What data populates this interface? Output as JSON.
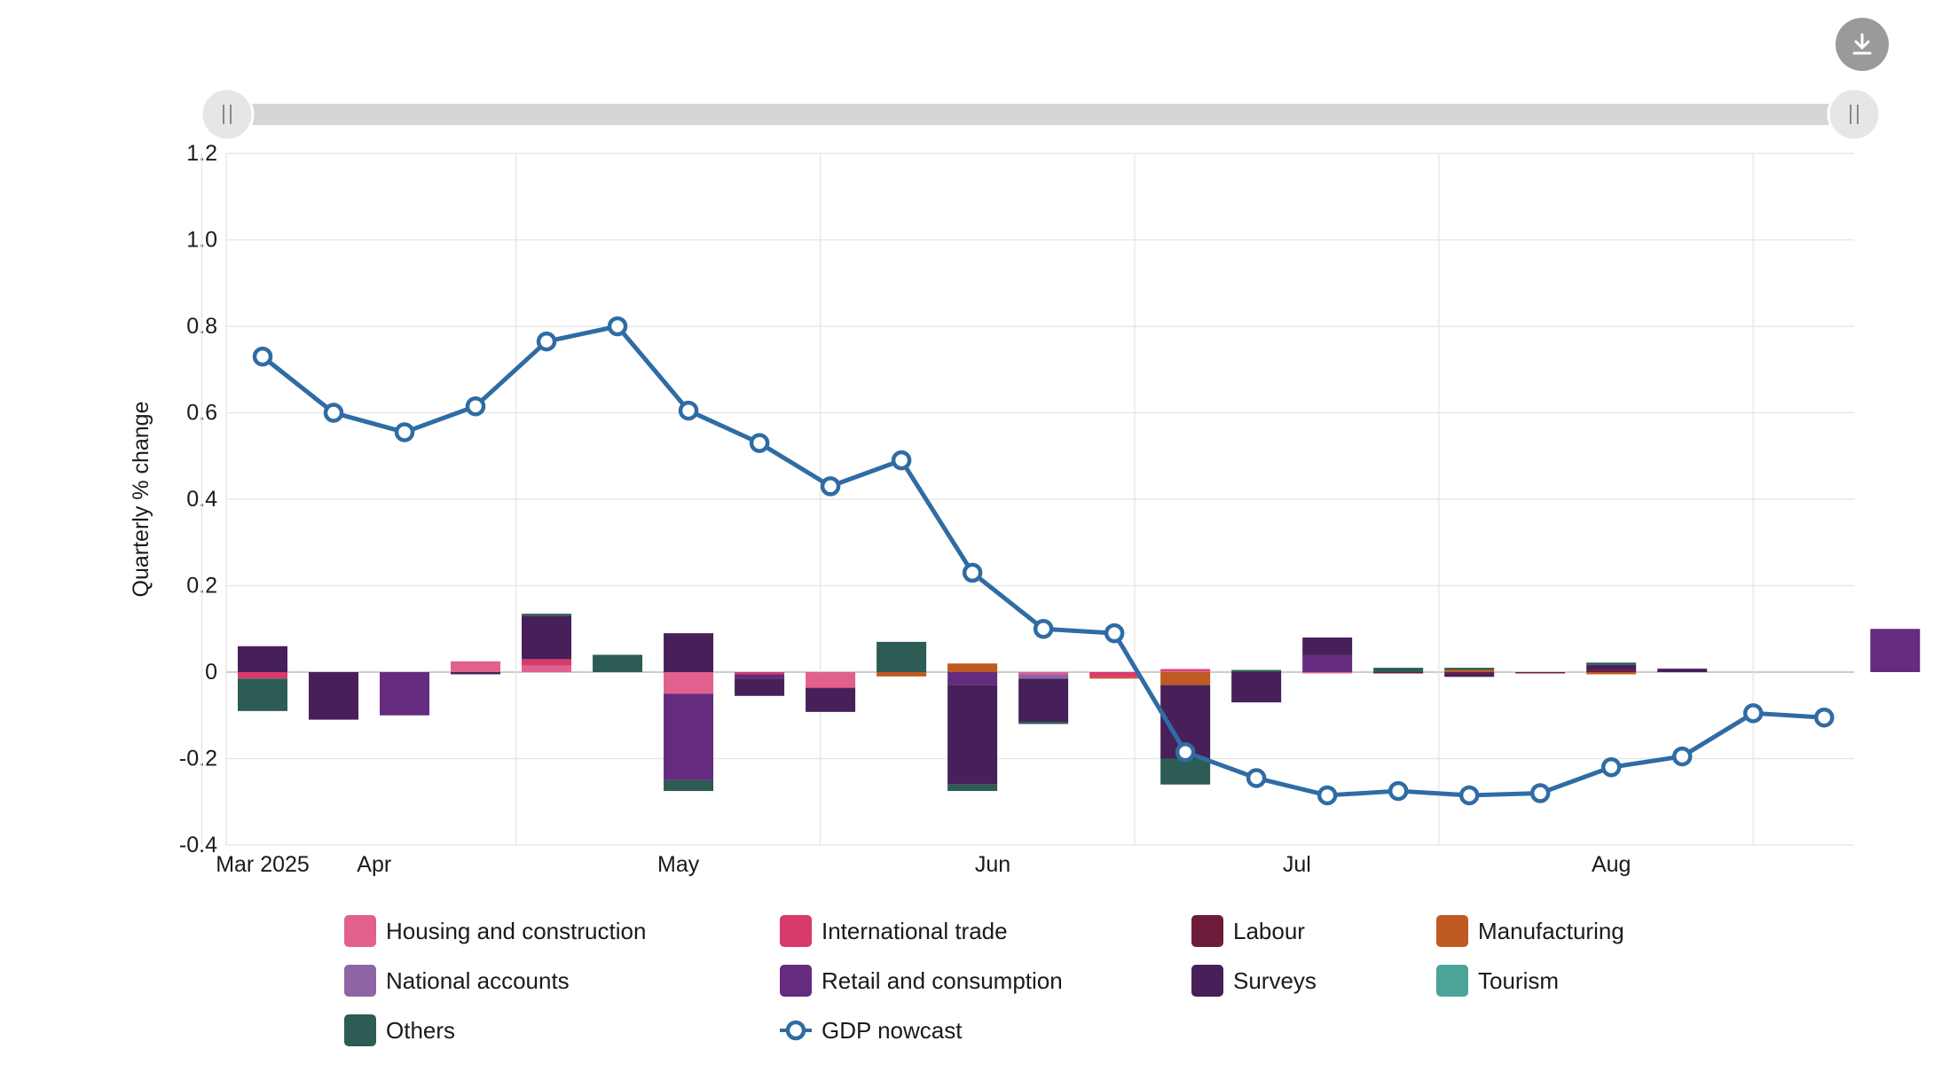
{
  "chart_data": {
    "type": "bar",
    "ylabel": "Quarterly % change",
    "xlabel": "",
    "ylim": [
      -0.4,
      1.2
    ],
    "yticks": [
      {
        "value": 1.2,
        "label": "1.2"
      },
      {
        "value": 1.0,
        "label": "1.0"
      },
      {
        "value": 0.8,
        "label": "0.8"
      },
      {
        "value": 0.6,
        "label": "0.6"
      },
      {
        "value": 0.4,
        "label": "0.4"
      },
      {
        "value": 0.2,
        "label": "0.2"
      },
      {
        "value": 0,
        "label": "0"
      },
      {
        "value": -0.2,
        "label": "-0.2"
      },
      {
        "value": -0.4,
        "label": "-0.4"
      }
    ],
    "xticks": [
      {
        "date": "2025-03-01",
        "label": "Mar 2025"
      },
      {
        "date": "2025-04-01",
        "label": "Apr"
      },
      {
        "date": "2025-05-01",
        "label": "May"
      },
      {
        "date": "2025-06-01",
        "label": "Jun"
      },
      {
        "date": "2025-07-01",
        "label": "Jul"
      },
      {
        "date": "2025-08-01",
        "label": "Aug"
      }
    ],
    "x": [
      "2025-03-07",
      "2025-03-14",
      "2025-03-21",
      "2025-03-28",
      "2025-04-04",
      "2025-04-11",
      "2025-04-18",
      "2025-04-25",
      "2025-05-02",
      "2025-05-09",
      "2025-05-16",
      "2025-05-23",
      "2025-05-30",
      "2025-06-06",
      "2025-06-13",
      "2025-06-20",
      "2025-06-27",
      "2025-07-04",
      "2025-07-11",
      "2025-07-18",
      "2025-07-25",
      "2025-08-01",
      "2025-08-08",
      "2025-08-15",
      "2025-08-22"
    ],
    "series": [
      {
        "name": "Housing and construction",
        "color": "#e1608e",
        "values": [
          0,
          0,
          0,
          0.025,
          0.015,
          0,
          -0.05,
          0,
          -0.035,
          0,
          0,
          -0.005,
          0,
          0.003,
          0,
          -0.003,
          0,
          0,
          0,
          0,
          0,
          0,
          0,
          0,
          -0.02
        ]
      },
      {
        "name": "International trade",
        "color": "#d83a6a",
        "values": [
          -0.015,
          0,
          0,
          0,
          0.015,
          0,
          0,
          -0.005,
          -0.002,
          0,
          0,
          0,
          -0.012,
          0.004,
          0,
          0,
          0,
          0,
          0,
          0,
          0,
          0,
          0,
          0,
          -0.005
        ]
      },
      {
        "name": "Labour",
        "color": "#6e1a3b",
        "values": [
          0,
          0,
          0,
          0,
          0,
          0,
          0,
          0,
          0,
          0,
          0,
          0,
          0,
          0,
          0,
          0,
          -0.003,
          -0.003,
          -0.003,
          0.005,
          0,
          0,
          0,
          0,
          0
        ]
      },
      {
        "name": "Manufacturing",
        "color": "#be5a22",
        "values": [
          0,
          0,
          0,
          0,
          0,
          0,
          0,
          0,
          0,
          -0.01,
          0.02,
          0,
          -0.003,
          -0.03,
          0,
          0,
          0,
          0.005,
          0,
          -0.005,
          0,
          0,
          0,
          0,
          0
        ]
      },
      {
        "name": "National accounts",
        "color": "#8f64a4",
        "values": [
          0,
          0,
          0,
          0,
          0,
          0,
          0,
          0,
          0,
          0,
          0,
          -0.01,
          0,
          0,
          0,
          0,
          0,
          0,
          0,
          0,
          0,
          0,
          0,
          0,
          0
        ]
      },
      {
        "name": "Retail and consumption",
        "color": "#652b7e",
        "values": [
          0,
          0,
          -0.1,
          0,
          0,
          0,
          -0.2,
          -0.01,
          0,
          0,
          -0.03,
          0,
          0,
          0,
          0,
          0.04,
          0,
          0,
          0,
          0,
          0,
          0,
          0,
          0.1,
          0
        ]
      },
      {
        "name": "Surveys",
        "color": "#47205a",
        "values": [
          0.06,
          -0.11,
          0,
          -0.005,
          0.1,
          0,
          0.09,
          -0.04,
          -0.055,
          0,
          -0.23,
          -0.1,
          0,
          -0.17,
          -0.07,
          0.04,
          0,
          -0.008,
          0,
          0.012,
          0.008,
          0,
          0,
          0,
          0
        ]
      },
      {
        "name": "Tourism",
        "color": "#4ba39a",
        "values": [
          0,
          0,
          0,
          0,
          0,
          0,
          0,
          0,
          0,
          0,
          0,
          0,
          0,
          0,
          0,
          0,
          0,
          0,
          0,
          0,
          0,
          0,
          0,
          0,
          0
        ]
      },
      {
        "name": "Others",
        "color": "#2d5c55",
        "values": [
          -0.075,
          0,
          0,
          0,
          0.005,
          0.04,
          -0.025,
          0,
          0,
          0.07,
          -0.015,
          -0.005,
          0,
          -0.06,
          0.005,
          0,
          0.01,
          0.005,
          0,
          0.005,
          0,
          0,
          0,
          0,
          0
        ]
      }
    ],
    "line": {
      "name": "GDP nowcast",
      "color": "#2f6ca4",
      "values": [
        0.73,
        0.6,
        0.555,
        0.615,
        0.765,
        0.8,
        0.605,
        0.53,
        0.43,
        0.49,
        0.23,
        0.1,
        0.09,
        -0.185,
        -0.245,
        -0.285,
        -0.275,
        -0.285,
        -0.28,
        -0.22,
        -0.195,
        -0.095,
        -0.105
      ]
    },
    "line_x": [
      "2025-03-07",
      "2025-03-14",
      "2025-03-21",
      "2025-03-28",
      "2025-04-04",
      "2025-04-11",
      "2025-04-18",
      "2025-04-25",
      "2025-05-02",
      "2025-05-09",
      "2025-05-16",
      "2025-05-23",
      "2025-05-30",
      "2025-06-06",
      "2025-06-13",
      "2025-06-20",
      "2025-06-27",
      "2025-07-04",
      "2025-07-11",
      "2025-07-18",
      "2025-07-25",
      "2025-08-01",
      "2025-08-08"
    ],
    "grid": true,
    "legend_position": "bottom"
  },
  "controls": {
    "download_icon": "download-icon",
    "range_slider": {
      "start": 0,
      "end": 1
    }
  },
  "colors": {
    "grid": "#e4e4e4",
    "zero_line": "#bbbbbb",
    "slider_track": "#d6d6d6",
    "handle": "#e6e6e6"
  }
}
